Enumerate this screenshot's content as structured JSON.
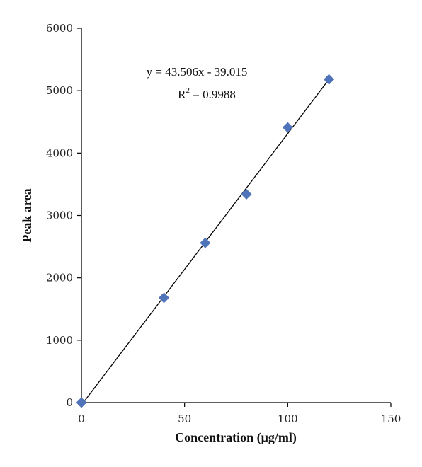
{
  "chart_data": {
    "type": "scatter",
    "title": "",
    "xlabel": "Concentration (μg/ml)",
    "ylabel": "Peak area",
    "xlim": [
      0,
      150
    ],
    "ylim": [
      0,
      6000
    ],
    "xticks": [
      0,
      50,
      100,
      150
    ],
    "yticks": [
      0,
      1000,
      2000,
      3000,
      4000,
      5000,
      6000
    ],
    "grid": false,
    "legend": "none",
    "marker": "diamond",
    "marker_color": "#4F74B9",
    "series": [
      {
        "x": [
          0,
          40,
          60,
          80,
          100,
          120
        ],
        "y": [
          0,
          1680,
          2560,
          3340,
          4410,
          5180
        ]
      }
    ],
    "trendline": {
      "slope": 43.506,
      "intercept": -39.015,
      "x_range": [
        0,
        120
      ],
      "color": "#000000"
    },
    "annotations": {
      "equation": "y = 43.506x - 39.015",
      "r2_base": "R",
      "r2_sup": "2",
      "r2_value": " = 0.9988"
    }
  }
}
